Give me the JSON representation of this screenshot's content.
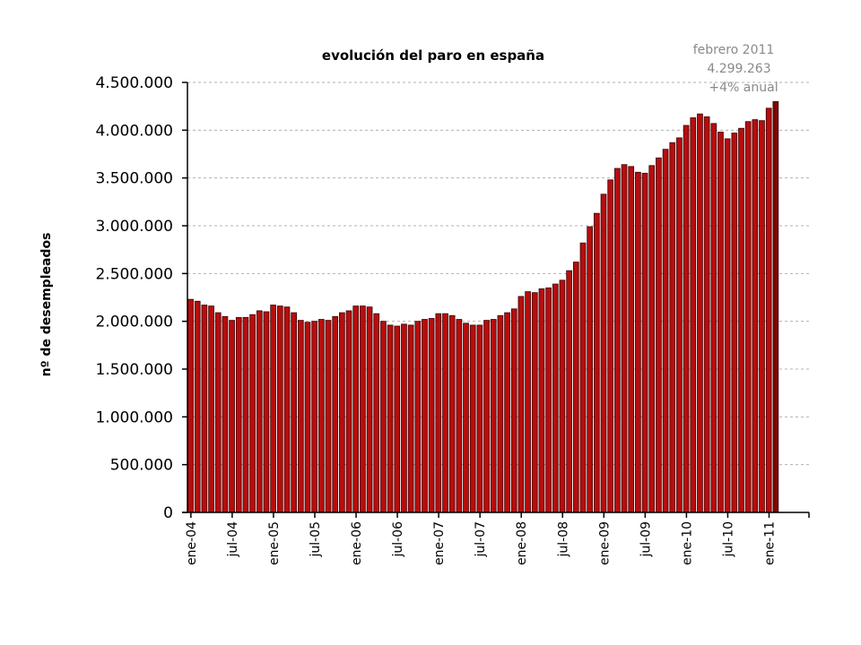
{
  "chart_data": {
    "type": "bar",
    "title": "evolución del paro en españa",
    "xlabel": "",
    "ylabel": "nº de desempleados",
    "ylim": [
      0,
      4500000
    ],
    "yticks": [
      0,
      500000,
      1000000,
      1500000,
      2000000,
      2500000,
      3000000,
      3500000,
      4000000,
      4500000
    ],
    "ytick_labels": [
      "0",
      "500.000",
      "1.000.000",
      "1.500.000",
      "2.000.000",
      "2.500.000",
      "3.000.000",
      "3.500.000",
      "4.000.000",
      "4.500.000"
    ],
    "grid": true,
    "categories": [
      "ene-04",
      "feb-04",
      "mar-04",
      "abr-04",
      "may-04",
      "jun-04",
      "jul-04",
      "ago-04",
      "sep-04",
      "oct-04",
      "nov-04",
      "dic-04",
      "ene-05",
      "feb-05",
      "mar-05",
      "abr-05",
      "may-05",
      "jun-05",
      "jul-05",
      "ago-05",
      "sep-05",
      "oct-05",
      "nov-05",
      "dic-05",
      "ene-06",
      "feb-06",
      "mar-06",
      "abr-06",
      "may-06",
      "jun-06",
      "jul-06",
      "ago-06",
      "sep-06",
      "oct-06",
      "nov-06",
      "dic-06",
      "ene-07",
      "feb-07",
      "mar-07",
      "abr-07",
      "may-07",
      "jun-07",
      "jul-07",
      "ago-07",
      "sep-07",
      "oct-07",
      "nov-07",
      "dic-07",
      "ene-08",
      "feb-08",
      "mar-08",
      "abr-08",
      "may-08",
      "jun-08",
      "jul-08",
      "ago-08",
      "sep-08",
      "oct-08",
      "nov-08",
      "dic-08",
      "ene-09",
      "feb-09",
      "mar-09",
      "abr-09",
      "may-09",
      "jun-09",
      "jul-09",
      "ago-09",
      "sep-09",
      "oct-09",
      "nov-09",
      "dic-09",
      "ene-10",
      "feb-10",
      "mar-10",
      "abr-10",
      "may-10",
      "jun-10",
      "jul-10",
      "ago-10",
      "sep-10",
      "oct-10",
      "nov-10",
      "dic-10",
      "ene-11",
      "feb-11"
    ],
    "values": [
      2230000,
      2210000,
      2170000,
      2160000,
      2090000,
      2050000,
      2010000,
      2040000,
      2040000,
      2070000,
      2110000,
      2100000,
      2170000,
      2160000,
      2150000,
      2090000,
      2010000,
      1990000,
      2000000,
      2020000,
      2010000,
      2050000,
      2090000,
      2110000,
      2160000,
      2160000,
      2150000,
      2080000,
      2000000,
      1960000,
      1950000,
      1970000,
      1960000,
      2000000,
      2020000,
      2030000,
      2080000,
      2080000,
      2060000,
      2020000,
      1980000,
      1960000,
      1960000,
      2010000,
      2020000,
      2060000,
      2090000,
      2130000,
      2260000,
      2310000,
      2300000,
      2340000,
      2350000,
      2390000,
      2430000,
      2530000,
      2620000,
      2820000,
      2990000,
      3130000,
      3330000,
      3480000,
      3600000,
      3640000,
      3620000,
      3560000,
      3550000,
      3630000,
      3710000,
      3800000,
      3870000,
      3920000,
      4050000,
      4130000,
      4170000,
      4140000,
      4070000,
      3980000,
      3910000,
      3970000,
      4020000,
      4090000,
      4110000,
      4100000,
      4230000,
      4299263
    ],
    "xtick_labels": [
      {
        "index": 0,
        "label": "ene-04"
      },
      {
        "index": 6,
        "label": "jul-04"
      },
      {
        "index": 12,
        "label": "ene-05"
      },
      {
        "index": 18,
        "label": "jul-05"
      },
      {
        "index": 24,
        "label": "ene-06"
      },
      {
        "index": 30,
        "label": "jul-06"
      },
      {
        "index": 36,
        "label": "ene-07"
      },
      {
        "index": 42,
        "label": "jul-07"
      },
      {
        "index": 48,
        "label": "ene-08"
      },
      {
        "index": 54,
        "label": "jul-08"
      },
      {
        "index": 60,
        "label": "ene-09"
      },
      {
        "index": 66,
        "label": "jul-09"
      },
      {
        "index": 72,
        "label": "ene-10"
      },
      {
        "index": 78,
        "label": "jul-10"
      },
      {
        "index": 84,
        "label": "ene-11"
      }
    ],
    "annotation": {
      "lines": [
        "febrero 2011",
        "4.299.263",
        "+4% anual"
      ],
      "color": "#8a8a8a"
    },
    "bar_color": "#b70d0d"
  }
}
